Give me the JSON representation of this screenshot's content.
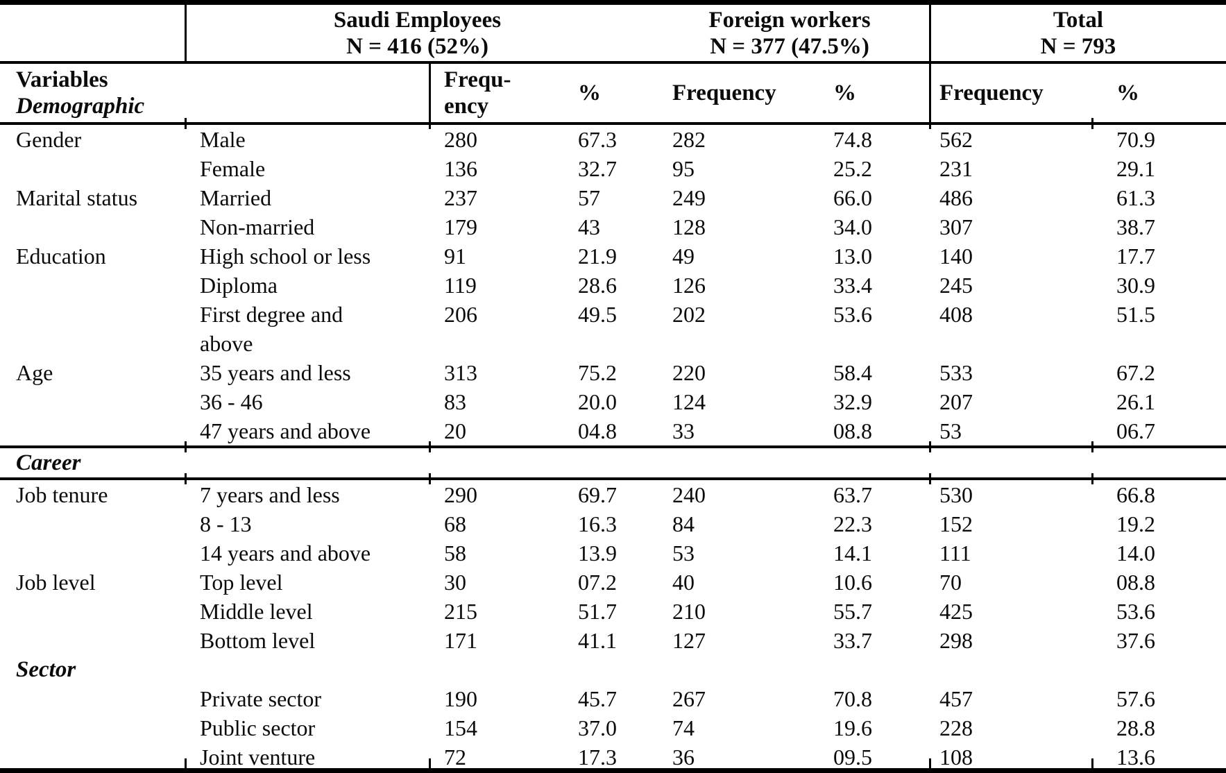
{
  "table": {
    "groups": [
      {
        "title": "Saudi Employees",
        "subtitle": "N = 416 (52%)"
      },
      {
        "title": "Foreign workers",
        "subtitle": "N = 377 (47.5%)"
      },
      {
        "title": "Total",
        "subtitle": "N = 793"
      }
    ],
    "header": {
      "variables_line1": "Variables",
      "variables_line2": "Demographic",
      "freq_saudi": "Frequ-\nency",
      "pct_saudi": "%",
      "freq_foreign": "Frequency",
      "pct_foreign": "%",
      "freq_total": "Frequency",
      "pct_total": "%"
    },
    "sections": [
      {
        "label": null,
        "ruled": false,
        "rows": [
          {
            "variable": "Gender",
            "category": "Male",
            "values": [
              "280",
              "67.3",
              "282",
              "74.8",
              "562",
              "70.9"
            ]
          },
          {
            "variable": "",
            "category": "Female",
            "values": [
              "136",
              "32.7",
              "95",
              "25.2",
              "231",
              "29.1"
            ]
          },
          {
            "variable": "Marital status",
            "category": "Married",
            "values": [
              "237",
              "57",
              "249",
              "66.0",
              "486",
              "61.3"
            ]
          },
          {
            "variable": "",
            "category": "Non-married",
            "values": [
              "179",
              "43",
              "128",
              "34.0",
              "307",
              "38.7"
            ]
          },
          {
            "variable": "Education",
            "category": "High school or less",
            "values": [
              "91",
              "21.9",
              "49",
              "13.0",
              "140",
              "17.7"
            ]
          },
          {
            "variable": "",
            "category": "Diploma",
            "values": [
              "119",
              "28.6",
              "126",
              "33.4",
              "245",
              "30.9"
            ]
          },
          {
            "variable": "",
            "category": "First degree and\nabove",
            "values": [
              "206",
              "49.5",
              "202",
              "53.6",
              "408",
              "51.5"
            ]
          },
          {
            "variable": "Age",
            "category": "35 years and less",
            "values": [
              "313",
              "75.2",
              "220",
              "58.4",
              "533",
              "67.2"
            ]
          },
          {
            "variable": "",
            "category": "36 - 46",
            "values": [
              "83",
              "20.0",
              "124",
              "32.9",
              "207",
              "26.1"
            ]
          },
          {
            "variable": "",
            "category": "47 years and above",
            "values": [
              "20",
              "04.8",
              "33",
              "08.8",
              "53",
              "06.7"
            ]
          }
        ]
      },
      {
        "label": "Career",
        "ruled": true,
        "rows": [
          {
            "variable": "Job tenure",
            "category": "7 years and less",
            "values": [
              "290",
              "69.7",
              "240",
              "63.7",
              "530",
              "66.8"
            ]
          },
          {
            "variable": "",
            "category": "8 - 13",
            "values": [
              "68",
              "16.3",
              "84",
              "22.3",
              "152",
              "19.2"
            ]
          },
          {
            "variable": "",
            "category": "14 years and above",
            "values": [
              "58",
              "13.9",
              "53",
              "14.1",
              "111",
              "14.0"
            ]
          },
          {
            "variable": "Job level",
            "category": "Top level",
            "values": [
              "30",
              "07.2",
              "40",
              "10.6",
              "70",
              "08.8"
            ]
          },
          {
            "variable": "",
            "category": "Middle level",
            "values": [
              "215",
              "51.7",
              "210",
              "55.7",
              "425",
              "53.6"
            ]
          },
          {
            "variable": "",
            "category": "Bottom level",
            "values": [
              "171",
              "41.1",
              "127",
              "33.7",
              "298",
              "37.6"
            ]
          }
        ]
      },
      {
        "label": "Sector",
        "ruled": false,
        "rows": [
          {
            "variable": "",
            "category": "Private sector",
            "values": [
              "190",
              "45.7",
              "267",
              "70.8",
              "457",
              "57.6"
            ]
          },
          {
            "variable": "",
            "category": "Public sector",
            "values": [
              "154",
              "37.0",
              "74",
              "19.6",
              "228",
              "28.8"
            ]
          },
          {
            "variable": "",
            "category": "Joint venture",
            "values": [
              "72",
              "17.3",
              "36",
              "09.5",
              "108",
              "13.6"
            ]
          }
        ]
      }
    ]
  }
}
